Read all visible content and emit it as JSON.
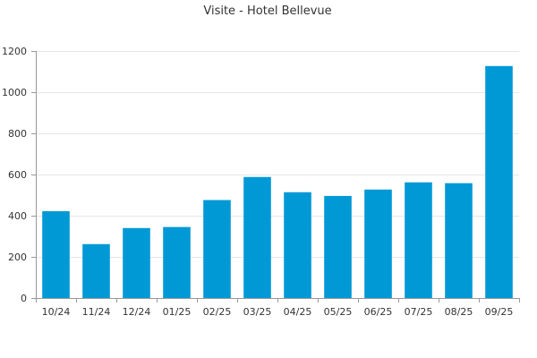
{
  "chart_data": {
    "type": "bar",
    "title": "Visite - Hotel Bellevue",
    "xlabel": "",
    "ylabel": "",
    "categories": [
      "10/24",
      "11/24",
      "12/24",
      "01/25",
      "02/25",
      "03/25",
      "04/25",
      "05/25",
      "06/25",
      "07/25",
      "08/25",
      "09/25"
    ],
    "series": [
      {
        "values": [
          422,
          262,
          340,
          345,
          476,
          588,
          514,
          496,
          527,
          562,
          558,
          1127
        ]
      }
    ],
    "ylim": [
      0,
      1200
    ],
    "yticks": [
      0,
      200,
      400,
      600,
      800,
      1000,
      1200
    ],
    "grid": true,
    "legend": "none",
    "colors": {
      "bar": "#0099d6",
      "grid": "#e6e6e6",
      "axis": "#999999",
      "text": "#333333"
    }
  }
}
